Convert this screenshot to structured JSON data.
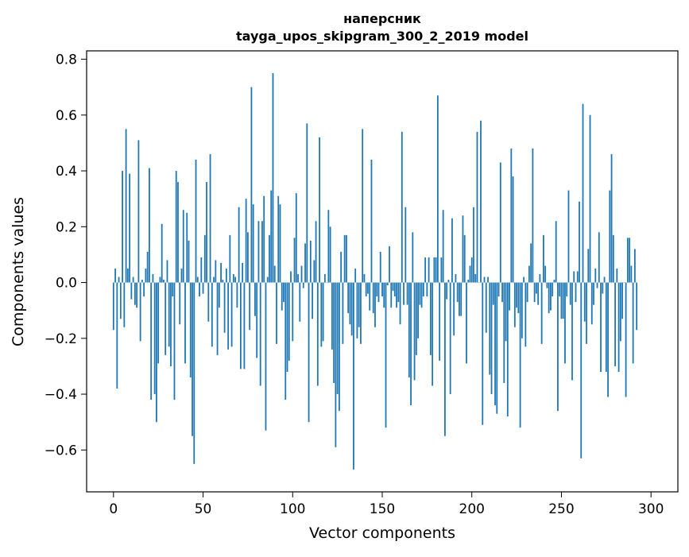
{
  "chart_data": {
    "type": "bar",
    "title": "наперсник",
    "subtitle": "tayga_upos_skipgram_300_2_2019 model",
    "xlabel": "Vector components",
    "ylabel": "Components values",
    "xlim": [
      -15,
      315
    ],
    "ylim": [
      -0.75,
      0.83
    ],
    "xticks": [
      0,
      50,
      100,
      150,
      200,
      250,
      300
    ],
    "yticks": [
      -0.6,
      -0.4,
      -0.2,
      0.0,
      0.2,
      0.4,
      0.6,
      0.8
    ],
    "xtick_labels": [
      "0",
      "50",
      "100",
      "150",
      "200",
      "250",
      "300"
    ],
    "ytick_labels": [
      "−0.6",
      "−0.4",
      "−0.2",
      "0.0",
      "0.2",
      "0.4",
      "0.6",
      "0.8"
    ],
    "grid": false,
    "bar_color": "#1f77b4",
    "values": [
      -0.17,
      0.05,
      -0.38,
      0.02,
      -0.13,
      0.4,
      -0.16,
      0.55,
      0.05,
      0.39,
      -0.06,
      0.02,
      -0.08,
      -0.09,
      0.51,
      -0.21,
      0.01,
      -0.05,
      0.05,
      0.11,
      0.41,
      -0.42,
      0.03,
      -0.4,
      -0.5,
      -0.29,
      0.02,
      0.21,
      0.01,
      -0.26,
      0.08,
      -0.23,
      -0.3,
      -0.05,
      -0.42,
      0.4,
      0.36,
      -0.15,
      0.05,
      0.26,
      -0.29,
      0.25,
      0.15,
      -0.34,
      -0.55,
      -0.65,
      0.44,
      0.02,
      -0.05,
      0.09,
      -0.04,
      0.17,
      0.36,
      -0.14,
      0.46,
      -0.23,
      0.02,
      0.08,
      -0.26,
      -0.09,
      0.07,
      0.01,
      -0.18,
      0.05,
      -0.24,
      0.17,
      -0.23,
      0.03,
      0.02,
      -0.09,
      0.27,
      -0.31,
      0.07,
      -0.31,
      0.3,
      0.18,
      -0.17,
      0.7,
      0.28,
      -0.12,
      -0.27,
      0.22,
      -0.37,
      0.22,
      0.31,
      -0.53,
      0.02,
      0.17,
      0.33,
      0.75,
      0.06,
      -0.22,
      0.31,
      0.28,
      -0.1,
      -0.07,
      -0.42,
      -0.32,
      -0.28,
      0.04,
      -0.21,
      0.16,
      0.32,
      0.03,
      -0.14,
      0.06,
      -0.02,
      0.14,
      0.57,
      -0.5,
      0.15,
      -0.13,
      0.08,
      0.22,
      -0.37,
      0.52,
      -0.23,
      -0.21,
      0.03,
      0.0,
      0.26,
      0.2,
      -0.24,
      -0.36,
      -0.59,
      -0.4,
      -0.46,
      0.11,
      -0.22,
      0.17,
      0.17,
      -0.11,
      -0.15,
      -0.19,
      -0.67,
      0.05,
      -0.2,
      -0.16,
      -0.22,
      0.55,
      0.03,
      -0.05,
      -0.04,
      -0.1,
      0.44,
      -0.11,
      -0.16,
      -0.05,
      -0.07,
      0.11,
      -0.05,
      -0.09,
      -0.52,
      -0.01,
      0.13,
      -0.09,
      -0.03,
      -0.05,
      -0.09,
      -0.07,
      -0.15,
      0.54,
      -0.08,
      0.27,
      -0.08,
      -0.34,
      -0.44,
      0.18,
      -0.35,
      -0.26,
      -0.2,
      -0.08,
      -0.09,
      -0.05,
      0.09,
      -0.05,
      0.09,
      -0.26,
      -0.37,
      0.09,
      0.09,
      0.67,
      -0.28,
      0.09,
      0.26,
      -0.55,
      -0.06,
      0.01,
      -0.4,
      0.23,
      -0.19,
      0.03,
      -0.07,
      -0.12,
      -0.12,
      0.24,
      0.17,
      -0.29,
      0.01,
      0.06,
      0.09,
      0.27,
      0.03,
      0.54,
      0.0,
      0.58,
      -0.51,
      0.02,
      -0.18,
      0.02,
      -0.33,
      -0.4,
      -0.08,
      -0.44,
      -0.47,
      -0.05,
      0.43,
      -0.07,
      -0.36,
      -0.21,
      -0.48,
      -0.1,
      0.48,
      0.38,
      -0.16,
      -0.09,
      -0.11,
      -0.52,
      -0.2,
      0.02,
      -0.23,
      -0.07,
      0.06,
      0.14,
      0.48,
      -0.07,
      -0.04,
      -0.08,
      0.03,
      -0.22,
      0.17,
      0.06,
      -0.02,
      -0.11,
      -0.1,
      -0.05,
      0.01,
      0.22,
      -0.46,
      -0.05,
      -0.13,
      -0.13,
      -0.29,
      -0.05,
      0.33,
      -0.08,
      -0.35,
      0.04,
      -0.07,
      0.04,
      0.29,
      -0.63,
      0.64,
      -0.14,
      -0.22,
      0.12,
      0.6,
      -0.15,
      -0.08,
      0.05,
      -0.02,
      0.18,
      -0.32,
      -0.04,
      0.02,
      -0.32,
      -0.41,
      0.33,
      0.46,
      0.17,
      -0.3,
      0.05,
      -0.32,
      -0.21,
      -0.13,
      0.0,
      -0.41,
      0.16,
      0.16,
      0.06,
      -0.29,
      0.12,
      -0.17
    ]
  }
}
